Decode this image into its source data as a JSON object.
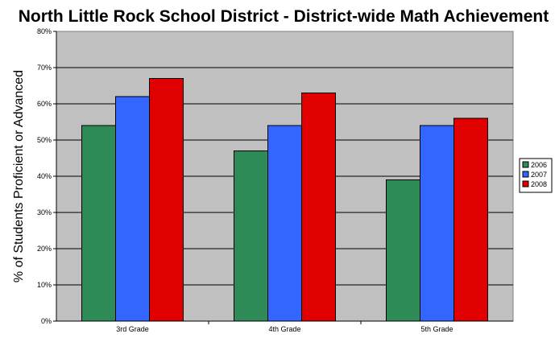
{
  "chart_data": {
    "type": "bar",
    "title": "North Little Rock School District - District-wide Math Achievement",
    "ylabel": "% of Students Proficient or Advanced",
    "xlabel": "",
    "categories": [
      "3rd Grade",
      "4th Grade",
      "5th Grade"
    ],
    "series": [
      {
        "name": "2006",
        "color": "#2e8b57",
        "values": [
          54,
          47,
          39
        ]
      },
      {
        "name": "2007",
        "color": "#3366ff",
        "values": [
          62,
          54,
          54
        ]
      },
      {
        "name": "2008",
        "color": "#e00000",
        "values": [
          67,
          63,
          56
        ]
      }
    ],
    "ylim": [
      0,
      80
    ],
    "yticks": [
      "0%",
      "10%",
      "20%",
      "30%",
      "40%",
      "50%",
      "60%",
      "70%",
      "80%"
    ],
    "grid": true,
    "legend_position": "right",
    "plot_background": "#c0c0c0"
  }
}
